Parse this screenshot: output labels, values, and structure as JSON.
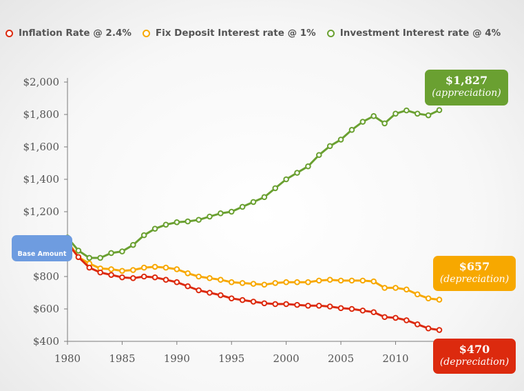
{
  "colors": {
    "inflation": "#dc2a0e",
    "fixed_deposit": "#f7a800",
    "investment": "#6aa031",
    "base": "#6e9ce0"
  },
  "legend": [
    {
      "label": "Inflation Rate @ 2.4%",
      "color": "#dc2a0e"
    },
    {
      "label": "Fix Deposit Interest rate @ 1%",
      "color": "#f7a800"
    },
    {
      "label": "Investment Interest rate @ 4%",
      "color": "#6aa031"
    }
  ],
  "base_label": "Base Amount",
  "callouts": {
    "investment": {
      "amount": "$1,827",
      "note": "(appreciation)"
    },
    "fixed_deposit": {
      "amount": "$657",
      "note": "(depreciation)"
    },
    "inflation": {
      "amount": "$470",
      "note": "(depreciation)"
    }
  },
  "chart_data": {
    "type": "line",
    "x": [
      1980,
      1981,
      1982,
      1983,
      1984,
      1985,
      1986,
      1987,
      1988,
      1989,
      1990,
      1991,
      1992,
      1993,
      1994,
      1995,
      1996,
      1997,
      1998,
      1999,
      2000,
      2001,
      2002,
      2003,
      2004,
      2005,
      2006,
      2007,
      2008,
      2009,
      2010,
      2011,
      2012,
      2013,
      2014
    ],
    "xlim": [
      1980,
      2014
    ],
    "ylim": [
      400,
      2000
    ],
    "x_ticks": [
      1980,
      1985,
      1990,
      1995,
      2000,
      2005,
      2010
    ],
    "x_tick_labels": [
      "1980",
      "1985",
      "1990",
      "1995",
      "2000",
      "2005",
      "2010"
    ],
    "y_ticks": [
      400,
      600,
      800,
      1000,
      1200,
      1400,
      1600,
      1800,
      2000
    ],
    "y_tick_labels": [
      "$400",
      "$600",
      "$800",
      "$1,000",
      "$1,200",
      "$1,400",
      "$1,600",
      "$1,800",
      "$2,000"
    ],
    "legend_position": "top",
    "series": [
      {
        "name": "Investment Interest rate @ 4%",
        "color": "#6aa031",
        "values": [
          1040,
          960,
          915,
          915,
          945,
          955,
          995,
          1055,
          1095,
          1120,
          1135,
          1140,
          1150,
          1170,
          1190,
          1200,
          1230,
          1260,
          1290,
          1345,
          1400,
          1440,
          1480,
          1550,
          1605,
          1645,
          1705,
          1755,
          1790,
          1745,
          1805,
          1825,
          1805,
          1795,
          1827
        ]
      },
      {
        "name": "Fix Deposit Interest rate @ 1%",
        "color": "#f7a800",
        "values": [
          1020,
          920,
          880,
          850,
          845,
          835,
          840,
          855,
          860,
          855,
          845,
          820,
          800,
          790,
          780,
          765,
          760,
          755,
          750,
          760,
          765,
          765,
          765,
          775,
          780,
          775,
          775,
          775,
          770,
          730,
          730,
          720,
          690,
          665,
          657
        ]
      },
      {
        "name": "Inflation Rate @ 2.4%",
        "color": "#dc2a0e",
        "values": [
          1005,
          920,
          855,
          825,
          810,
          795,
          790,
          800,
          795,
          780,
          765,
          740,
          715,
          700,
          685,
          665,
          655,
          645,
          635,
          630,
          630,
          625,
          620,
          620,
          615,
          605,
          600,
          590,
          580,
          550,
          545,
          530,
          505,
          480,
          470
        ]
      }
    ]
  }
}
